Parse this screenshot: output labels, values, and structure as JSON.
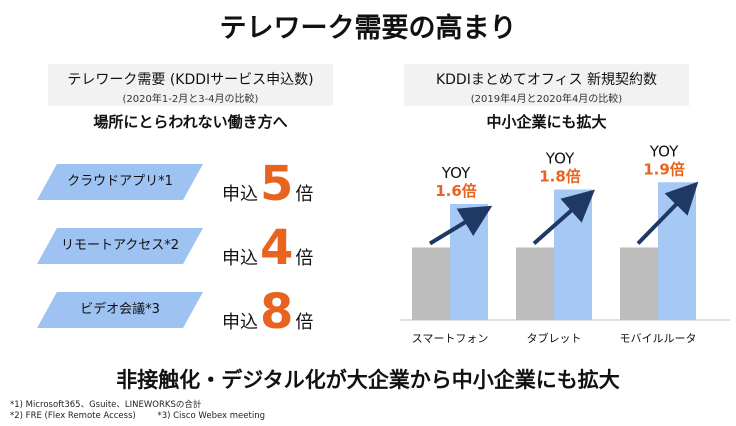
{
  "title": "テレワーク需要の高まり",
  "left_panel": {
    "heading": "テレワーク需要 (KDDIサービス申込数)",
    "subheading": "(2020年1-2月と3-4月の比較)",
    "tagline": "場所にとらわれない働き方へ",
    "items": [
      {
        "label": "クラウドアプリ*1",
        "prefix": "申込",
        "value": "5",
        "suffix": "倍"
      },
      {
        "label": "リモートアクセス*2",
        "prefix": "申込",
        "value": "4",
        "suffix": "倍"
      },
      {
        "label": "ビデオ会議*3",
        "prefix": "申込",
        "value": "8",
        "suffix": "倍"
      }
    ]
  },
  "right_panel": {
    "heading": "KDDIまとめてオフィス 新規契約数",
    "subheading": "(2019年4月と2020年4月の比較)",
    "tagline": "中小企業にも拡大"
  },
  "chart_data": {
    "type": "bar",
    "categories": [
      "スマートフォン",
      "タブレット",
      "モバイルルータ"
    ],
    "series": [
      {
        "values": [
          1.0,
          1.0,
          1.0
        ],
        "color": "#bdbdbd"
      },
      {
        "values": [
          1.6,
          1.8,
          1.9
        ],
        "color": "#a6c8f5"
      }
    ],
    "annotations": [
      {
        "label": "YOY",
        "value": "1.6倍"
      },
      {
        "label": "YOY",
        "value": "1.8倍"
      },
      {
        "label": "YOY",
        "value": "1.9倍"
      }
    ],
    "ylim": [
      0,
      2.0
    ],
    "grid": false,
    "accent_color": "#e8641e",
    "arrow_color": "#1f3864"
  },
  "bottom_text": "非接触化・デジタル化が大企業から中小企業にも拡大",
  "footnotes": [
    "*1) Microsoft365、Gsuite、LINEWORKSの合計",
    "*2) FRE (Flex Remote Access)        *3) Cisco Webex meeting"
  ]
}
